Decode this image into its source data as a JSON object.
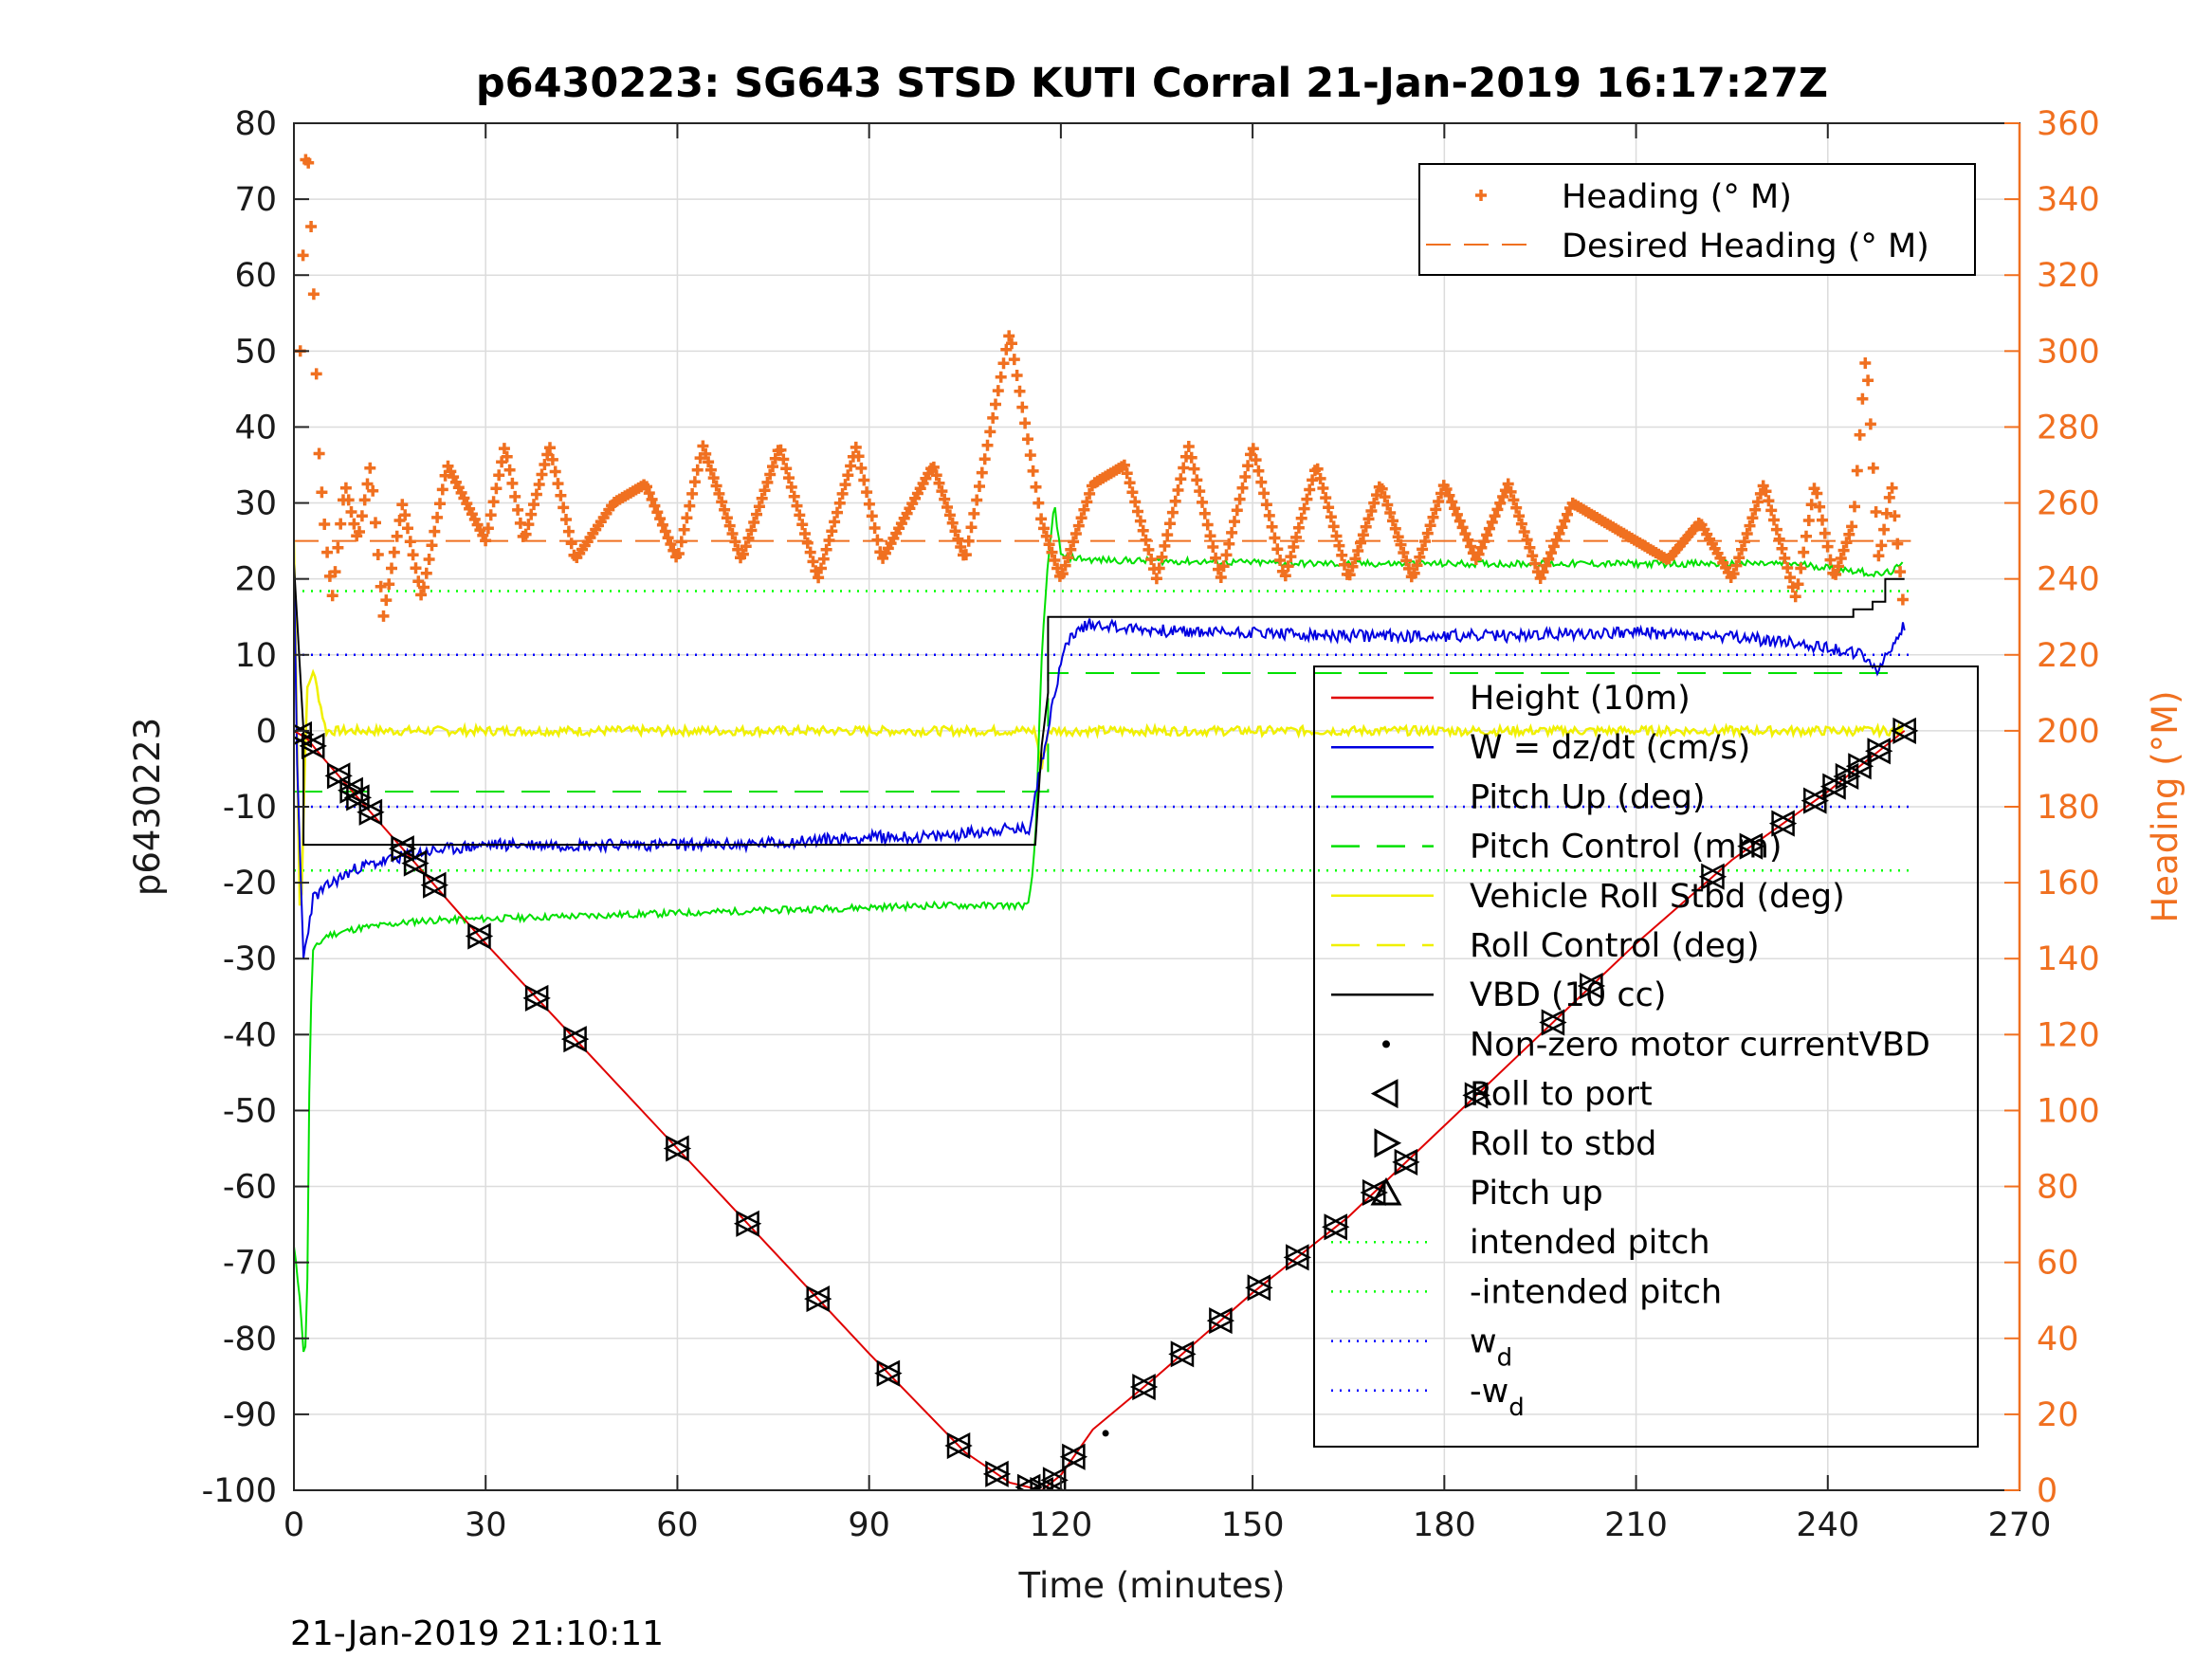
{
  "colors": {
    "heading": "#f07020",
    "height": "#e00000",
    "w": "#0000e0",
    "pitch": "#00e000",
    "roll": "#f0f000",
    "vbd": "#000000",
    "wd": "#0000ff",
    "intended": "#00ff00"
  },
  "chart_data": {
    "type": "line",
    "title": "p6430223: SG643 STSD KUTI Corral 21-Jan-2019 16:17:27Z",
    "xlabel": "Time (minutes)",
    "ylabel": "p6430223",
    "y2label": "Heading (°M)",
    "xlim": [
      0,
      270
    ],
    "ylim": [
      -100,
      80
    ],
    "y2lim": [
      0,
      360
    ],
    "xticks": [
      "0",
      "30",
      "60",
      "90",
      "120",
      "150",
      "180",
      "210",
      "240",
      "270"
    ],
    "yticks": [
      "-100",
      "-90",
      "-80",
      "-70",
      "-60",
      "-50",
      "-40",
      "-30",
      "-20",
      "-10",
      "0",
      "10",
      "20",
      "30",
      "40",
      "50",
      "60",
      "70",
      "80"
    ],
    "y2ticks": [
      "0",
      "20",
      "40",
      "60",
      "80",
      "100",
      "120",
      "140",
      "160",
      "180",
      "200",
      "220",
      "240",
      "260",
      "280",
      "300",
      "320",
      "340",
      "360"
    ],
    "timestamp": "21-Jan-2019 21:10:11",
    "legend_top": [
      "Heading (° M)",
      "Desired Heading (° M)"
    ],
    "legend_main": [
      "Height (10m)",
      "W = dz/dt (cm/s)",
      "Pitch Up (deg)",
      "Pitch Control (mm)",
      "Vehicle Roll Stbd (deg)",
      "Roll Control (deg)",
      "VBD (10 cc)",
      "Non-zero motor currentVBD",
      "Roll to port",
      "Roll to stbd",
      "Pitch up",
      "intended pitch",
      "-intended pitch",
      "w",
      "-w"
    ],
    "legend_subscript": "d",
    "desired_heading": 250,
    "intended_pitch": 18.4,
    "w_d": 10,
    "series": [
      {
        "name": "Height (10m)",
        "x": [
          0,
          2,
          5,
          30,
          60,
          90,
          105,
          112,
          117,
          120,
          125,
          135,
          150,
          165,
          180,
          195,
          210,
          225,
          240,
          246,
          252
        ],
        "y": [
          0,
          -1,
          -4,
          -28,
          -55,
          -82,
          -95,
          -99,
          -100,
          -98,
          -92,
          -85,
          -74,
          -64,
          -52,
          -40,
          -28,
          -17,
          -8,
          -4,
          0
        ]
      },
      {
        "name": "W = dz/dt (cm/s)",
        "x": [
          0,
          0.5,
          1.5,
          3,
          6,
          10,
          20,
          30,
          40,
          50,
          60,
          70,
          80,
          90,
          100,
          110,
          115,
          117,
          119,
          121,
          124,
          127,
          130,
          140,
          150,
          160,
          170,
          180,
          190,
          200,
          210,
          220,
          230,
          235,
          240,
          245,
          248,
          250,
          252
        ],
        "y": [
          22,
          -5,
          -30,
          -22,
          -20,
          -18,
          -16,
          -15,
          -15,
          -15,
          -15,
          -15,
          -14.5,
          -14,
          -14,
          -13,
          -13,
          -4,
          5,
          12,
          14,
          14,
          13.5,
          13,
          13,
          12.5,
          12.5,
          12.5,
          12.5,
          12.8,
          13,
          12.5,
          12,
          11.5,
          11,
          10,
          8,
          11,
          14
        ]
      },
      {
        "name": "Pitch Up (deg)",
        "x": [
          0,
          1,
          1.5,
          2,
          2.5,
          3,
          5,
          10,
          20,
          40,
          60,
          80,
          100,
          115,
          116,
          117,
          118,
          119,
          120,
          125,
          140,
          160,
          180,
          200,
          220,
          235,
          240,
          245,
          248,
          250,
          252
        ],
        "y": [
          -68,
          -75,
          -82,
          -80,
          -40,
          -29,
          -27,
          -26,
          -25,
          -24.5,
          -24,
          -23.5,
          -23,
          -23,
          -15,
          10,
          22,
          30,
          23,
          22.5,
          22.3,
          22,
          22,
          22,
          22,
          22,
          21.5,
          21,
          20.5,
          21,
          22
        ]
      },
      {
        "name": "Pitch Control (mm)",
        "x": [
          0,
          3,
          3,
          118,
          118,
          252
        ],
        "y": [
          -8,
          -8,
          -8,
          -8,
          7.6,
          7.6
        ]
      },
      {
        "name": "Vehicle Roll Stbd (deg)",
        "x": [
          0,
          1,
          2,
          3,
          5,
          10,
          30,
          60,
          90,
          116,
          117,
          118,
          120,
          150,
          180,
          210,
          240,
          252
        ],
        "y": [
          25,
          -28,
          5,
          8,
          0,
          0,
          0,
          0,
          0,
          0,
          -5,
          0,
          0,
          0,
          0,
          0,
          0,
          0
        ]
      },
      {
        "name": "VBD (10 cc)",
        "x": [
          0,
          1.5,
          1.5,
          116,
          117,
          118,
          118,
          240,
          244,
          244,
          247,
          247,
          249,
          249,
          252
        ],
        "y": [
          22,
          0,
          -15,
          -15,
          -2,
          5,
          15,
          15,
          15,
          16,
          16,
          17,
          17,
          20,
          20
        ]
      },
      {
        "name": "Heading (° M)",
        "x": [
          1,
          2,
          3,
          4,
          5,
          6,
          8,
          10,
          12,
          14,
          17,
          20,
          24,
          30,
          33,
          36,
          40,
          44,
          50,
          55,
          60,
          64,
          70,
          76,
          82,
          88,
          92,
          100,
          105,
          112,
          117,
          120,
          125,
          130,
          135,
          140,
          145,
          150,
          155,
          160,
          165,
          170,
          175,
          180,
          185,
          190,
          195,
          200,
          205,
          210,
          215,
          220,
          225,
          230,
          235,
          238,
          241,
          244,
          246,
          248,
          250,
          252
        ],
        "y": [
          300,
          360,
          320,
          270,
          250,
          235,
          265,
          250,
          270,
          230,
          260,
          235,
          270,
          250,
          275,
          250,
          275,
          245,
          260,
          265,
          245,
          275,
          245,
          275,
          240,
          275,
          245,
          270,
          245,
          305,
          255,
          240,
          265,
          270,
          240,
          275,
          240,
          275,
          240,
          270,
          240,
          265,
          240,
          265,
          245,
          265,
          240,
          260,
          255,
          250,
          245,
          255,
          240,
          265,
          235,
          265,
          240,
          255,
          300,
          245,
          265,
          230
        ]
      }
    ]
  }
}
